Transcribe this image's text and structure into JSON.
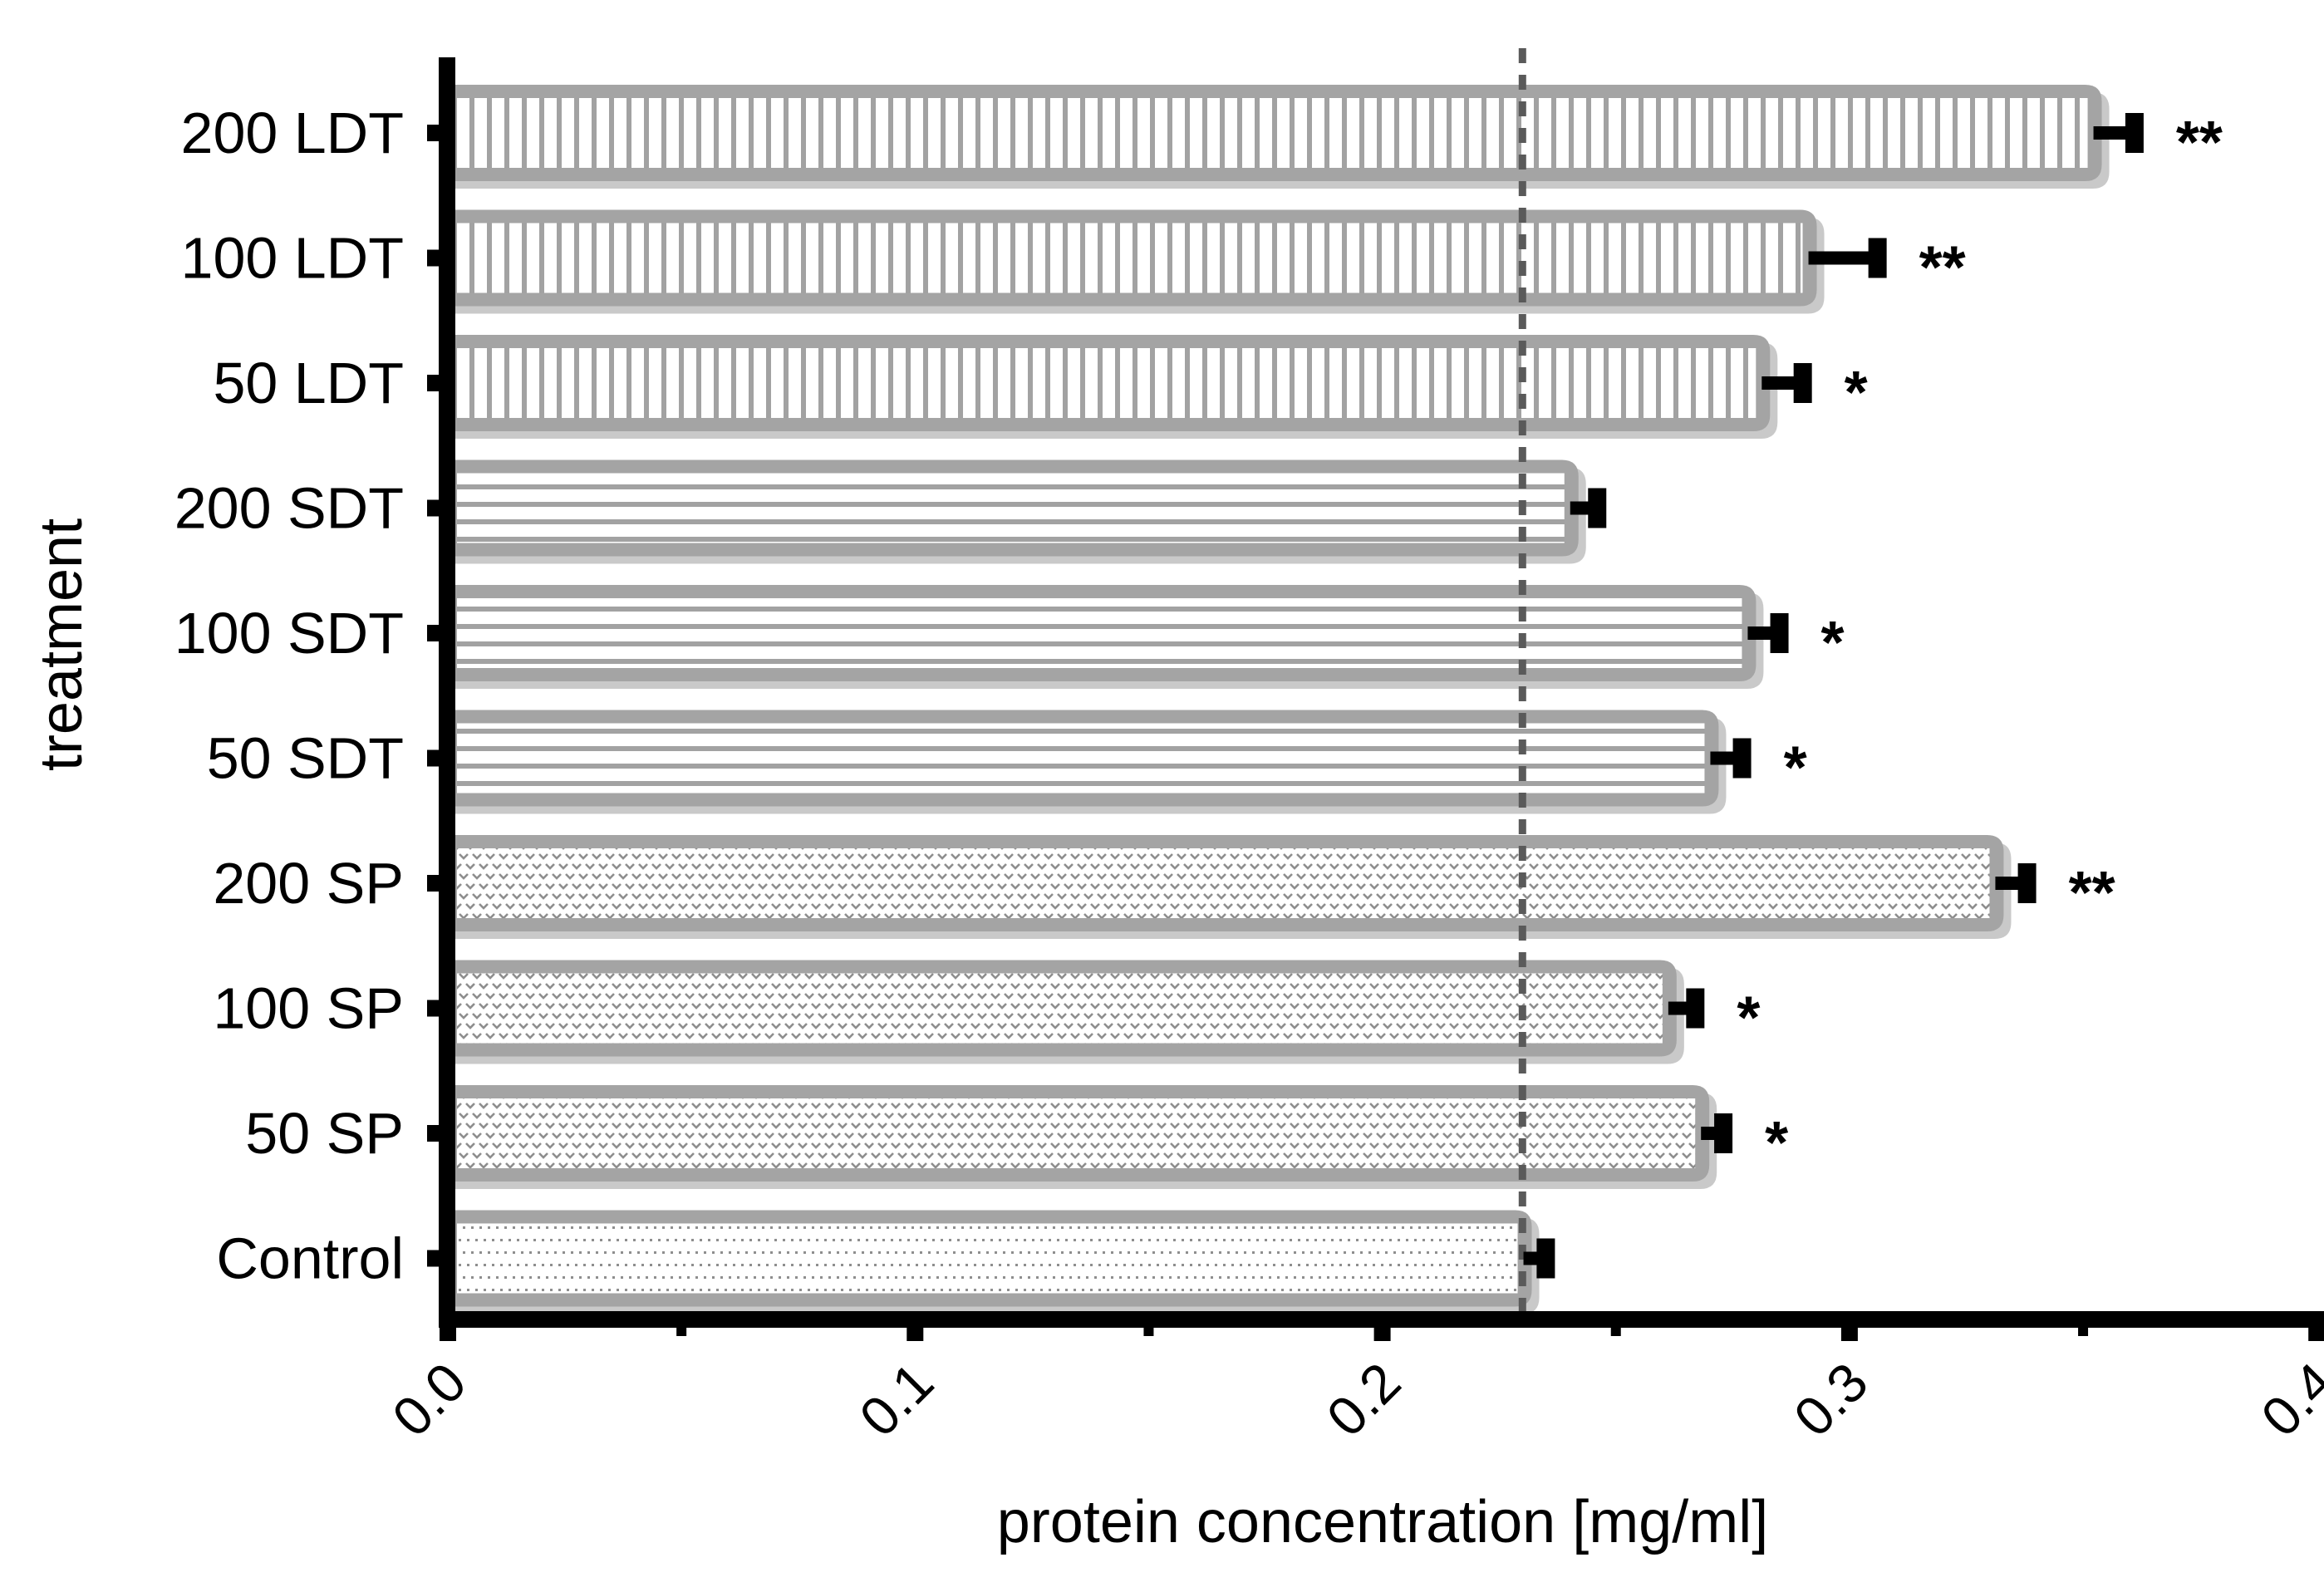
{
  "chart_data": {
    "type": "bar",
    "orientation": "horizontal",
    "title": "",
    "xlabel": "protein concentration [mg/ml]",
    "ylabel": "treatment",
    "xlim": [
      0.0,
      0.4
    ],
    "x_major_ticks": [
      0.0,
      0.1,
      0.2,
      0.3,
      0.4
    ],
    "x_tick_labels": [
      "0.0",
      "0.1",
      "0.2",
      "0.3",
      "0.4"
    ],
    "x_minor_ticks": [
      0.05,
      0.15,
      0.25,
      0.35
    ],
    "grid": false,
    "legend": "none",
    "tick_label_rotation_deg": -45,
    "categories": [
      "200 LDT",
      "100 LDT",
      "50 LDT",
      "200 SDT",
      "100 SDT",
      "50 SDT",
      "200 SP",
      "100 SP",
      "50 SP",
      "Control"
    ],
    "series": [
      {
        "name": "protein concentration [mg/ml]",
        "values": [
          0.354,
          0.293,
          0.283,
          0.242,
          0.28,
          0.272,
          0.333,
          0.263,
          0.27,
          0.232
        ],
        "sem_upper": [
          0.007,
          0.013,
          0.007,
          0.004,
          0.005,
          0.005,
          0.005,
          0.004,
          0.003,
          0.003
        ],
        "significance": [
          "**",
          "**",
          "*",
          "",
          "*",
          "*",
          "**",
          "*",
          "*",
          ""
        ]
      }
    ],
    "bar_patterns": [
      "vertical-stripes",
      "vertical-stripes",
      "vertical-stripes",
      "horizontal-stripes",
      "horizontal-stripes",
      "horizontal-stripes",
      "v-stipple",
      "v-stipple",
      "v-stipple",
      "sparse-dots"
    ],
    "reference_line": {
      "x": 0.23,
      "style": "dashed",
      "meaning": "control mean level"
    }
  },
  "colors": {
    "bar_border": "#a4a4a4",
    "stripe_mark": "#a2a2a2",
    "stipple_mark": "#8e8e8e",
    "bar_fill": "#ffffff",
    "bar_shadow": "#c9c9c9",
    "axis": "#000000",
    "error_bar": "#000000",
    "dashed_line": "#5a5a5a",
    "background": "#ffffff"
  }
}
